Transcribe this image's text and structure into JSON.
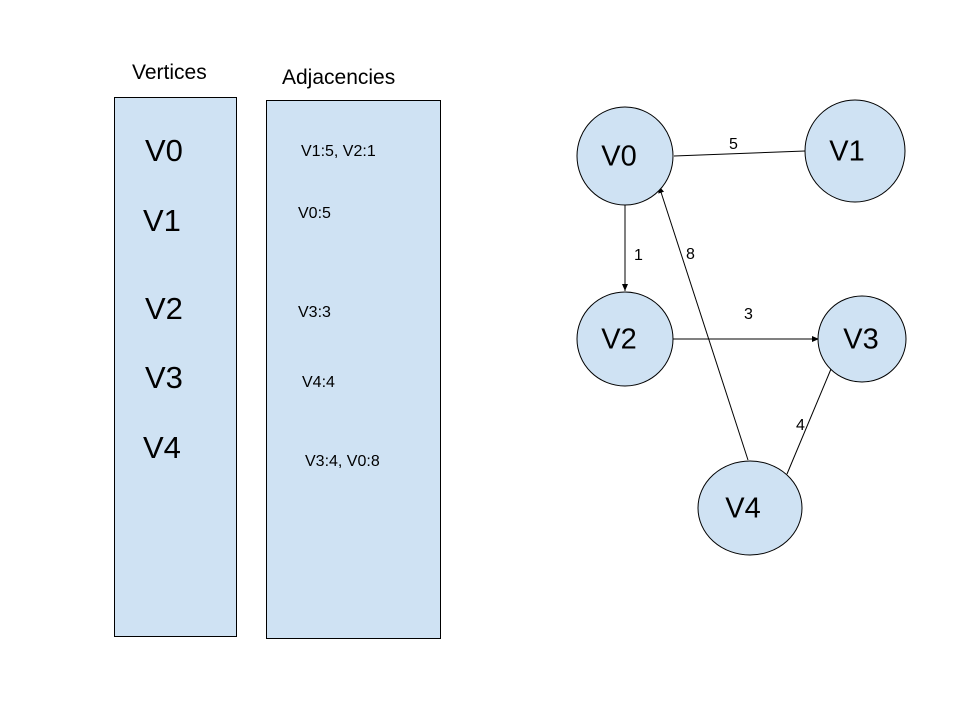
{
  "table": {
    "vertices_heading": "Vertices",
    "adjacencies_heading": "Adjacencies",
    "rows": [
      {
        "vertex": "V0",
        "adjacency": "V1:5, V2:1"
      },
      {
        "vertex": "V1",
        "adjacency": "V0:5"
      },
      {
        "vertex": "V2",
        "adjacency": "V3:3"
      },
      {
        "vertex": "V3",
        "adjacency": "V4:4"
      },
      {
        "vertex": "V4",
        "adjacency": "V3:4, V0:8"
      }
    ]
  },
  "graph": {
    "nodes": [
      "V0",
      "V1",
      "V2",
      "V3",
      "V4"
    ],
    "edges": [
      {
        "from": "V0",
        "to": "V1",
        "weight": "5",
        "directed": false
      },
      {
        "from": "V0",
        "to": "V2",
        "weight": "1",
        "directed": true
      },
      {
        "from": "V2",
        "to": "V3",
        "weight": "3",
        "directed": true
      },
      {
        "from": "V3",
        "to": "V4",
        "weight": "4",
        "directed": false
      },
      {
        "from": "V4",
        "to": "V0",
        "weight": "8",
        "directed": true
      }
    ]
  },
  "colors": {
    "node_fill": "#cfe2f3",
    "panel_fill": "#cfe2f3",
    "stroke": "#000000"
  }
}
